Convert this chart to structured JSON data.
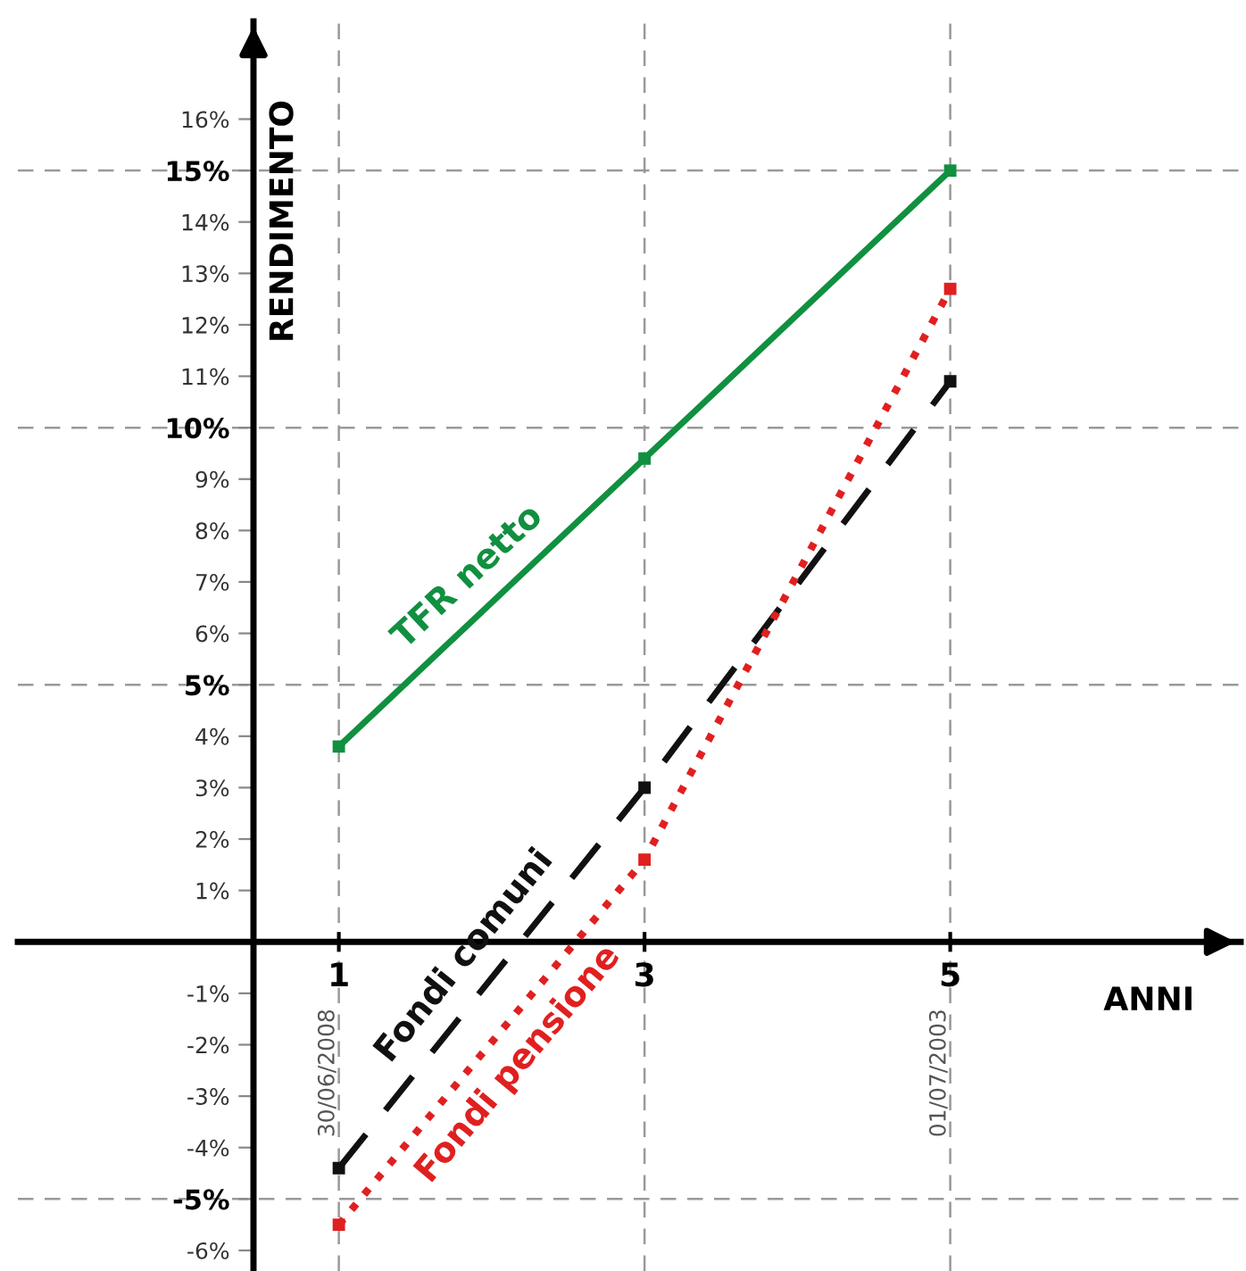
{
  "chart_data": {
    "type": "line",
    "xlabel": "ANNI",
    "ylabel": "RENDIMENTO",
    "x": [
      1,
      3,
      5
    ],
    "series": [
      {
        "name": "TFR netto",
        "color": "#109040",
        "values": [
          3.8,
          9.4,
          15.0
        ],
        "line_style": "solid"
      },
      {
        "name": "Fondi comuni",
        "color": "#111111",
        "values": [
          -4.4,
          3.0,
          10.9
        ],
        "line_style": "dashed"
      },
      {
        "name": "Fondi pensione",
        "color": "#e02020",
        "values": [
          -5.5,
          1.6,
          12.7
        ],
        "line_style": "dotted"
      }
    ],
    "marker": "square",
    "xlim": [
      -1.1,
      6.9
    ],
    "xticks": [
      1,
      3,
      5
    ],
    "ylim": [
      -6.4,
      17.9
    ],
    "yticks": [
      {
        "value": -6,
        "label": "-6%"
      },
      {
        "value": -5,
        "label": "-5%"
      },
      {
        "value": -4,
        "label": "-4%"
      },
      {
        "value": -3,
        "label": "-3%"
      },
      {
        "value": -2,
        "label": "-2%"
      },
      {
        "value": -1,
        "label": "-1%"
      },
      {
        "value": 1,
        "label": "1%"
      },
      {
        "value": 2,
        "label": "2%"
      },
      {
        "value": 3,
        "label": "3%"
      },
      {
        "value": 4,
        "label": "4%"
      },
      {
        "value": 5,
        "label": "5%"
      },
      {
        "value": 6,
        "label": "6%"
      },
      {
        "value": 7,
        "label": "7%"
      },
      {
        "value": 8,
        "label": "8%"
      },
      {
        "value": 9,
        "label": "9%"
      },
      {
        "value": 10,
        "label": "10%"
      },
      {
        "value": 11,
        "label": "11%"
      },
      {
        "value": 12,
        "label": "12%"
      },
      {
        "value": 13,
        "label": "13%"
      },
      {
        "value": 14,
        "label": "14%"
      },
      {
        "value": 15,
        "label": "15%"
      },
      {
        "value": 16,
        "label": "16%"
      }
    ],
    "ref_lines": [
      {
        "axis": "y",
        "value": 15,
        "color": "#999999",
        "line_style": "dashed"
      },
      {
        "axis": "y",
        "value": 10,
        "color": "#999999",
        "line_style": "dashed"
      },
      {
        "axis": "y",
        "value": 5,
        "color": "#999999",
        "line_style": "dashed"
      },
      {
        "axis": "y",
        "value": -5,
        "color": "#999999",
        "line_style": "dashed"
      },
      {
        "axis": "x",
        "value": 1,
        "color": "#999999",
        "line_style": "dashed"
      },
      {
        "axis": "x",
        "value": 3,
        "color": "#999999",
        "line_style": "dashed"
      },
      {
        "axis": "x",
        "value": 5,
        "color": "#999999",
        "line_style": "dashed"
      }
    ],
    "annotations": [
      {
        "text": "30/06/2008",
        "x": 1
      },
      {
        "text": "01/07/2003",
        "x": 5
      }
    ],
    "grid": false,
    "legend": false
  }
}
